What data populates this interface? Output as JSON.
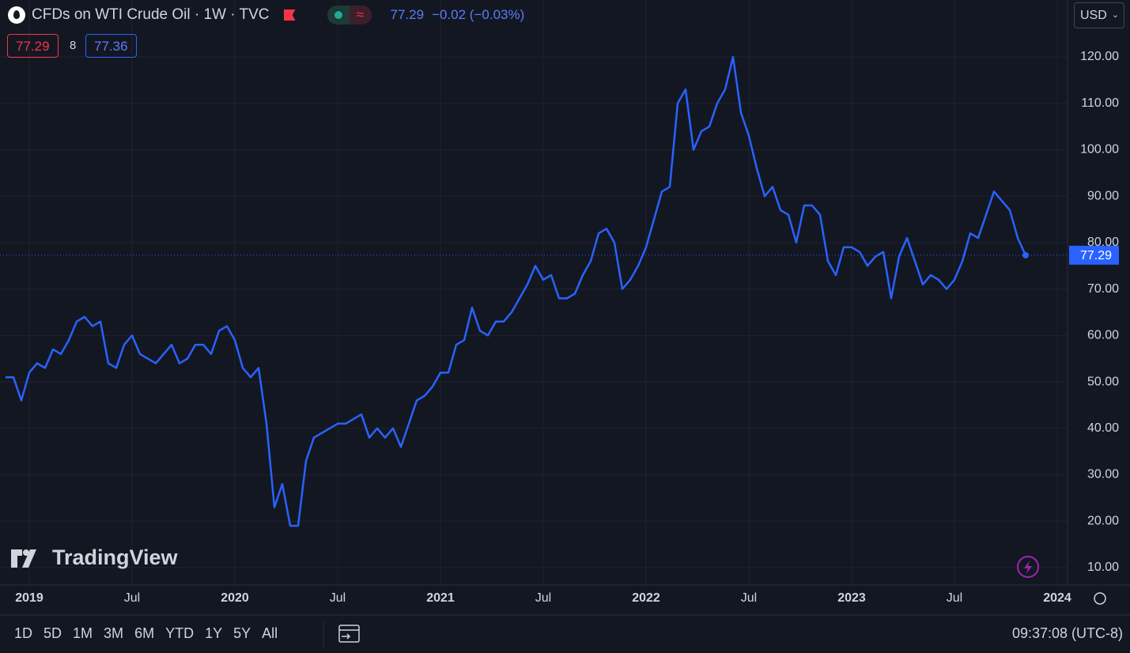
{
  "header": {
    "symbol": "CFDs on WTI Crude Oil · 1W · TVC",
    "last": "77.29",
    "change": "−0.02 (−0.03%)",
    "bid": "77.29",
    "spread": "8",
    "ask": "77.36",
    "currency": "USD"
  },
  "chart_data": {
    "type": "line",
    "color": "#2962ff",
    "categories": [
      null,
      null,
      null,
      "2019",
      null,
      null,
      null,
      null,
      null,
      null,
      null,
      null,
      null,
      null,
      null,
      null,
      "Jul",
      null,
      null,
      null,
      null,
      null,
      null,
      null,
      null,
      null,
      null,
      null,
      null,
      "2020",
      null,
      null,
      null,
      null,
      null,
      null,
      null,
      null,
      null,
      null,
      null,
      null,
      "Jul",
      null,
      null,
      null,
      null,
      null,
      null,
      null,
      null,
      null,
      null,
      null,
      null,
      "2021",
      null,
      null,
      null,
      null,
      null,
      null,
      null,
      null,
      null,
      null,
      null,
      null,
      "Jul",
      null,
      null,
      null,
      null,
      null,
      null,
      null,
      null,
      null,
      null,
      null,
      null,
      "2022",
      null,
      null,
      null,
      null,
      null,
      null,
      null,
      null,
      null,
      null,
      null,
      null,
      "Jul",
      null,
      null,
      null,
      null,
      null,
      null,
      null,
      null,
      null,
      null,
      null,
      null,
      "2023",
      null,
      null,
      null,
      null,
      null,
      null,
      null,
      null,
      null,
      null,
      null,
      null,
      "Jul",
      null,
      null,
      null,
      null,
      null,
      null,
      null,
      null,
      null,
      null,
      null,
      null,
      "2024"
    ],
    "values": [
      51,
      51,
      46,
      52,
      54,
      53,
      57,
      56,
      59,
      63,
      64,
      62,
      63,
      54,
      53,
      58,
      60,
      56,
      55,
      54,
      56,
      58,
      54,
      55,
      58,
      58,
      56,
      61,
      62,
      59,
      53,
      51,
      53,
      41,
      23,
      28,
      19,
      19,
      33,
      38,
      39,
      40,
      41,
      41,
      42,
      43,
      38,
      40,
      38,
      40,
      36,
      41,
      46,
      47,
      49,
      52,
      52,
      58,
      59,
      66,
      61,
      60,
      63,
      63,
      65,
      68,
      71,
      75,
      72,
      73,
      68,
      68,
      69,
      73,
      76,
      82,
      83,
      80,
      70,
      72,
      75,
      79,
      85,
      91,
      92,
      110,
      113,
      100,
      104,
      105,
      110,
      113,
      120,
      108,
      103,
      96,
      90,
      92,
      87,
      86,
      80,
      88,
      88,
      86,
      76,
      73,
      79,
      79,
      78,
      75,
      77,
      78,
      68,
      77,
      81,
      76,
      71,
      73,
      72,
      70,
      72,
      76,
      82,
      81,
      86,
      91,
      89,
      87,
      81,
      77.29,
      null,
      null,
      null,
      null
    ],
    "ylim": [
      6.25,
      132.26
    ],
    "yticks": [
      {
        "value": 10,
        "label": "10.00"
      },
      {
        "value": 20,
        "label": "20.00"
      },
      {
        "value": 30,
        "label": "30.00"
      },
      {
        "value": 40,
        "label": "40.00"
      },
      {
        "value": 50,
        "label": "50.00"
      },
      {
        "value": 60,
        "label": "60.00"
      },
      {
        "value": 70,
        "label": "70.00"
      },
      {
        "value": 80,
        "label": "80.00"
      },
      {
        "value": 90,
        "label": "90.00"
      },
      {
        "value": 100,
        "label": "100.00"
      },
      {
        "value": 110,
        "label": "110.00"
      },
      {
        "value": 120,
        "label": "120.00"
      }
    ],
    "grid": true
  },
  "footer": {
    "ranges": [
      "1D",
      "5D",
      "1M",
      "3M",
      "6M",
      "YTD",
      "1Y",
      "5Y",
      "All"
    ],
    "clock": "09:37:08 (UTC-8)",
    "brand": "TradingView"
  }
}
